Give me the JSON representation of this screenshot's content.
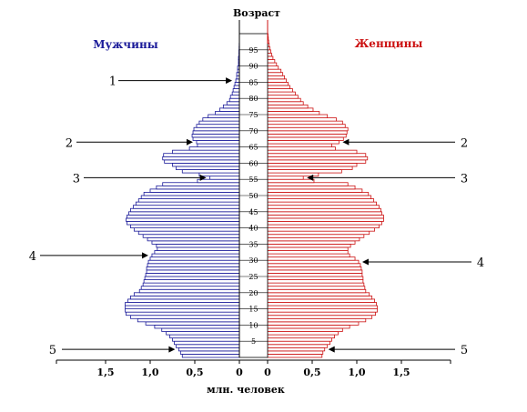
{
  "chart_data": {
    "type": "bar",
    "title": "Возраст",
    "xlabel": "млн. человек",
    "orientation": "horizontal",
    "layout": "population-pyramid",
    "xlim": [
      0,
      2.0
    ],
    "xticks": [
      0,
      0.5,
      1.0,
      1.5
    ],
    "xtick_labels_left": [
      "0",
      "0,5",
      "1,0",
      "1,5"
    ],
    "xtick_labels_right": [
      "0",
      "0,5",
      "1,0",
      "1,5"
    ],
    "age_tick_labels": [
      "5",
      "10",
      "15",
      "20",
      "25",
      "30",
      "35",
      "40",
      "45",
      "50",
      "55",
      "60",
      "65",
      "70",
      "75",
      "80",
      "85",
      "90",
      "95"
    ],
    "categories": [
      0,
      1,
      2,
      3,
      4,
      5,
      6,
      7,
      8,
      9,
      10,
      11,
      12,
      13,
      14,
      15,
      16,
      17,
      18,
      19,
      20,
      21,
      22,
      23,
      24,
      25,
      26,
      27,
      28,
      29,
      30,
      31,
      32,
      33,
      34,
      35,
      36,
      37,
      38,
      39,
      40,
      41,
      42,
      43,
      44,
      45,
      46,
      47,
      48,
      49,
      50,
      51,
      52,
      53,
      54,
      55,
      56,
      57,
      58,
      59,
      60,
      61,
      62,
      63,
      64,
      65,
      66,
      67,
      68,
      69,
      70,
      71,
      72,
      73,
      74,
      75,
      76,
      77,
      78,
      79,
      80,
      81,
      82,
      83,
      84,
      85,
      86,
      87,
      88,
      89,
      90,
      91,
      92,
      93,
      94,
      95,
      96,
      97,
      98,
      99
    ],
    "series": [
      {
        "name": "Мужчины",
        "color": "#1a1a99",
        "values": [
          0.64,
          0.66,
          0.68,
          0.71,
          0.73,
          0.75,
          0.78,
          0.82,
          0.87,
          0.95,
          1.05,
          1.14,
          1.22,
          1.27,
          1.28,
          1.28,
          1.28,
          1.25,
          1.22,
          1.18,
          1.12,
          1.1,
          1.08,
          1.07,
          1.06,
          1.05,
          1.04,
          1.04,
          1.03,
          1.02,
          1.0,
          0.98,
          0.95,
          0.92,
          0.93,
          0.98,
          1.03,
          1.08,
          1.13,
          1.18,
          1.22,
          1.26,
          1.27,
          1.26,
          1.24,
          1.22,
          1.19,
          1.16,
          1.13,
          1.1,
          1.07,
          1.0,
          0.93,
          0.86,
          0.47,
          0.33,
          0.45,
          0.64,
          0.71,
          0.75,
          0.84,
          0.86,
          0.85,
          0.75,
          0.56,
          0.47,
          0.48,
          0.52,
          0.53,
          0.52,
          0.51,
          0.48,
          0.45,
          0.41,
          0.35,
          0.27,
          0.22,
          0.18,
          0.14,
          0.11,
          0.1,
          0.08,
          0.07,
          0.06,
          0.05,
          0.04,
          0.03,
          0.03,
          0.02,
          0.02,
          0.01,
          0.01,
          0.01,
          0.005,
          0.005,
          0.003,
          0.002,
          0.001,
          0.001,
          0.001
        ]
      },
      {
        "name": "Женщины",
        "color": "#cc1111",
        "values": [
          0.61,
          0.62,
          0.64,
          0.67,
          0.7,
          0.72,
          0.75,
          0.79,
          0.84,
          0.92,
          1.02,
          1.1,
          1.17,
          1.21,
          1.23,
          1.23,
          1.22,
          1.2,
          1.17,
          1.14,
          1.1,
          1.09,
          1.08,
          1.07,
          1.07,
          1.06,
          1.06,
          1.05,
          1.04,
          1.02,
          0.98,
          0.92,
          0.9,
          0.9,
          0.93,
          0.98,
          1.03,
          1.08,
          1.14,
          1.2,
          1.25,
          1.28,
          1.3,
          1.3,
          1.28,
          1.27,
          1.25,
          1.22,
          1.19,
          1.16,
          1.13,
          1.06,
          0.98,
          0.9,
          0.52,
          0.4,
          0.57,
          0.83,
          0.95,
          1.0,
          1.1,
          1.12,
          1.1,
          1.0,
          0.76,
          0.72,
          0.8,
          0.85,
          0.88,
          0.89,
          0.9,
          0.87,
          0.84,
          0.77,
          0.67,
          0.58,
          0.51,
          0.45,
          0.4,
          0.37,
          0.34,
          0.31,
          0.28,
          0.25,
          0.23,
          0.21,
          0.19,
          0.17,
          0.15,
          0.12,
          0.1,
          0.08,
          0.06,
          0.045,
          0.035,
          0.025,
          0.018,
          0.012,
          0.008,
          0.005
        ]
      }
    ]
  },
  "labels": {
    "males": "Мужчины",
    "females": "Женщины",
    "age_axis": "Возраст",
    "x_unit": "млн. человек"
  },
  "annotations": [
    {
      "label": "1",
      "side": "left",
      "age": 85
    },
    {
      "label": "2",
      "side": "left",
      "age": 66
    },
    {
      "label": "2",
      "side": "right",
      "age": 66
    },
    {
      "label": "3",
      "side": "left",
      "age": 55
    },
    {
      "label": "3",
      "side": "right",
      "age": 55
    },
    {
      "label": "4",
      "side": "left",
      "age": 31
    },
    {
      "label": "4",
      "side": "right",
      "age": 29
    },
    {
      "label": "5",
      "side": "left",
      "age": 2
    },
    {
      "label": "5",
      "side": "right",
      "age": 2
    }
  ],
  "colors": {
    "male": "#1a1a99",
    "female": "#cc1111",
    "axis": "#000000",
    "background": "#ffffff"
  }
}
